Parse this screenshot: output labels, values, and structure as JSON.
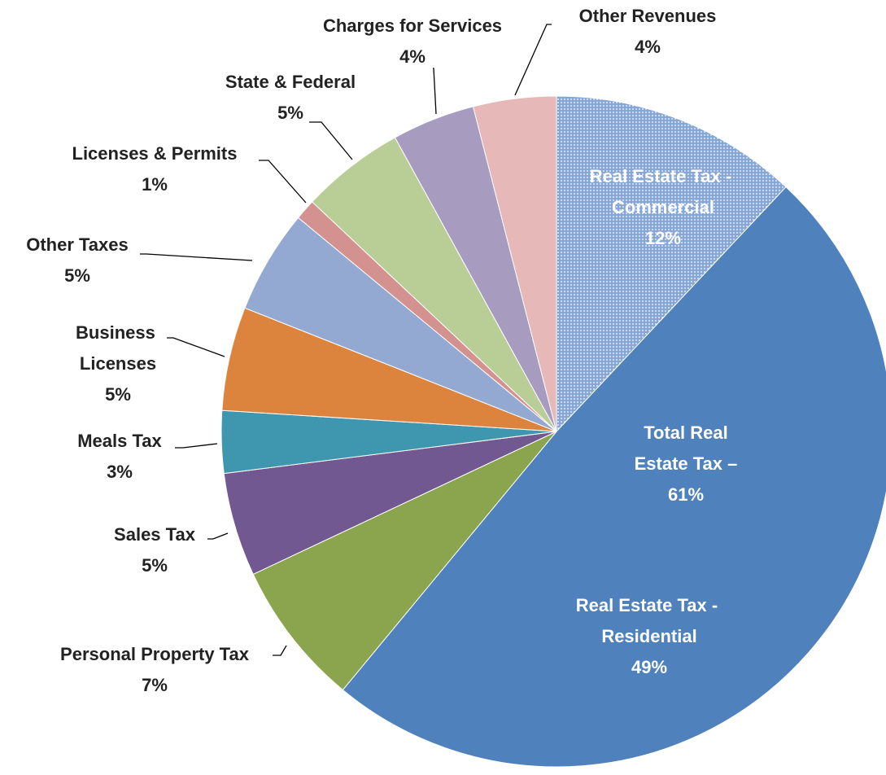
{
  "chart_data": {
    "type": "pie",
    "categories": [
      "Real Estate Tax - Commercial",
      "Real Estate Tax - Residential",
      "Personal Property Tax",
      "Sales Tax",
      "Meals Tax",
      "Business Licenses",
      "Other Taxes",
      "Licenses & Permits",
      "State & Federal",
      "Charges for Services",
      "Other Revenues"
    ],
    "values": [
      12,
      49,
      7,
      5,
      3,
      5,
      5,
      1,
      5,
      4,
      4
    ],
    "value_labels": [
      "12%",
      "49%",
      "7%",
      "5%",
      "3%",
      "5%",
      "5%",
      "1%",
      "5%",
      "4%",
      "4%"
    ],
    "colors": [
      "#86a6d6",
      "#4f81bd",
      "#8ba54e",
      "#715890",
      "#3e97ae",
      "#dc843e",
      "#94a9d1",
      "#d39290",
      "#b9cd96",
      "#a89bc0",
      "#e6b8b7"
    ],
    "annotation": [
      "Total Real",
      "Estate Tax –",
      "61%"
    ]
  }
}
